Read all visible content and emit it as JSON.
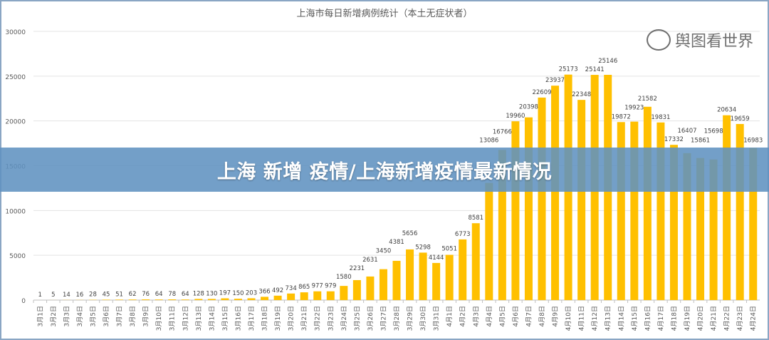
{
  "chart_data": {
    "type": "bar",
    "title": "上海市每日新增病例统计（本土无症状者）",
    "xlabel": "",
    "ylabel": "",
    "ylim": [
      0,
      30000
    ],
    "yticks": [
      0,
      5000,
      10000,
      15000,
      20000,
      25000,
      30000
    ],
    "grid": true,
    "bar_color": "#FFC000",
    "categories": [
      "3月1日",
      "3月2日",
      "3月3日",
      "3月4日",
      "3月5日",
      "3月6日",
      "3月7日",
      "3月8日",
      "3月9日",
      "3月10日",
      "3月11日",
      "3月12日",
      "3月13日",
      "3月14日",
      "3月15日",
      "3月16日",
      "3月17日",
      "3月18日",
      "3月19日",
      "3月20日",
      "3月21日",
      "3月22日",
      "3月23日",
      "3月24日",
      "3月25日",
      "3月26日",
      "3月27日",
      "3月28日",
      "3月29日",
      "3月30日",
      "3月31日",
      "4月1日",
      "4月2日",
      "4月3日",
      "4月4日",
      "4月5日",
      "4月6日",
      "4月7日",
      "4月8日",
      "4月9日",
      "4月10日",
      "4月11日",
      "4月12日",
      "4月13日",
      "4月14日",
      "4月15日",
      "4月16日",
      "4月17日",
      "4月18日",
      "4月19日",
      "4月20日",
      "4月21日",
      "4月22日",
      "4月23日",
      "4月24日"
    ],
    "values": [
      1,
      5,
      14,
      16,
      28,
      45,
      51,
      62,
      76,
      64,
      78,
      64,
      128,
      130,
      197,
      150,
      203,
      366,
      492,
      734,
      865,
      977,
      979,
      1580,
      2231,
      2631,
      3450,
      4381,
      5656,
      5298,
      4144,
      5051,
      6773,
      8581,
      13086,
      16766,
      19960,
      20398,
      22609,
      23937,
      25173,
      22348,
      25141,
      25146,
      19872,
      19923,
      21582,
      19831,
      17332,
      16407,
      15861,
      15698,
      20634,
      19659,
      16983
    ]
  },
  "banner": {
    "text": "上海 新增 疫情/上海新增疫情最新情况",
    "color": "#6092C0"
  },
  "watermark": {
    "text": "舆图看世界",
    "icon": "wechat-icon"
  }
}
